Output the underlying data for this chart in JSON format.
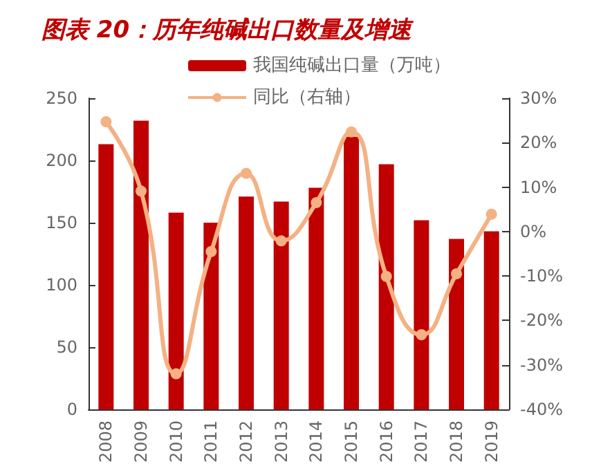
{
  "chart_data": {
    "type": "bar",
    "title": "图表 20：历年纯碱出口数量及增速",
    "categories": [
      "2008",
      "2009",
      "2010",
      "2011",
      "2012",
      "2013",
      "2014",
      "2015",
      "2016",
      "2017",
      "2018",
      "2019"
    ],
    "series": [
      {
        "name": "我国纯碱出口量（万吨）",
        "color": "#c00000",
        "values": [
          213,
          232,
          158,
          150,
          171,
          167,
          178,
          219,
          197,
          152,
          137,
          143
        ]
      },
      {
        "name": "同比（右轴）",
        "type": "line",
        "axis": "y2",
        "color": "#f4b183",
        "marker": "circle",
        "values": [
          24.7,
          9.1,
          -32,
          -4.5,
          13.1,
          -2.1,
          6.5,
          22.4,
          -10.1,
          -23.2,
          -9.5,
          3.9
        ]
      }
    ],
    "ylim": [
      0,
      250
    ],
    "yticks": [
      0,
      50,
      100,
      150,
      200,
      250
    ],
    "y2lim": [
      -40,
      30
    ],
    "y2ticks": [
      {
        "value": -40,
        "label": "-40%"
      },
      {
        "value": -30,
        "label": "-30%"
      },
      {
        "value": -20,
        "label": "-20%"
      },
      {
        "value": -10,
        "label": "-10%"
      },
      {
        "value": 0,
        "label": "0%"
      },
      {
        "value": 10,
        "label": "10%"
      },
      {
        "value": 20,
        "label": "20%"
      },
      {
        "value": 30,
        "label": "30%"
      }
    ],
    "grid": false,
    "legend": "top"
  }
}
